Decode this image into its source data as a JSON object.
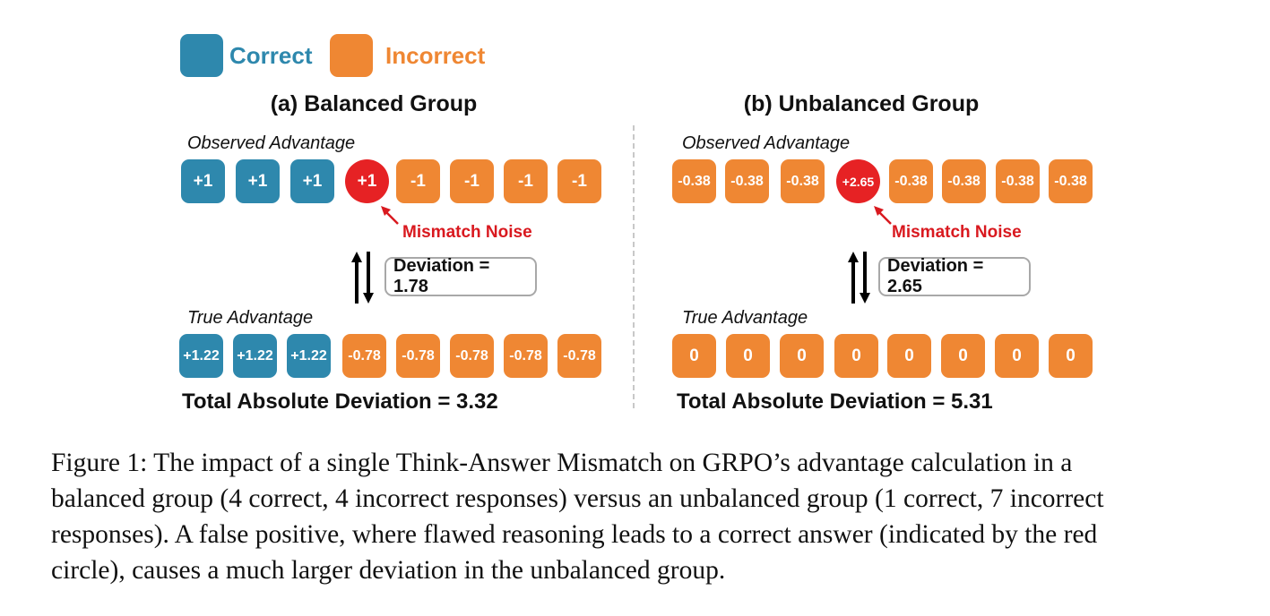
{
  "legend": {
    "correct": {
      "label": "Correct",
      "color": "#2e88ad"
    },
    "incorrect": {
      "label": "Incorrect",
      "color": "#ef8733"
    }
  },
  "colors": {
    "noise": "#e62224",
    "mismatch_text": "#d9191f"
  },
  "panels": [
    {
      "title": "(a) Balanced Group",
      "observed_label": "Observed Advantage",
      "observed": [
        {
          "value": "+1",
          "kind": "correct"
        },
        {
          "value": "+1",
          "kind": "correct"
        },
        {
          "value": "+1",
          "kind": "correct"
        },
        {
          "value": "+1",
          "kind": "noise"
        },
        {
          "value": "-1",
          "kind": "incorrect"
        },
        {
          "value": "-1",
          "kind": "incorrect"
        },
        {
          "value": "-1",
          "kind": "incorrect"
        },
        {
          "value": "-1",
          "kind": "incorrect"
        }
      ],
      "mismatch_label": "Mismatch Noise",
      "deviation_label": "Deviation = 1.78",
      "true_label": "True Advantage",
      "true": [
        {
          "value": "+1.22",
          "kind": "correct"
        },
        {
          "value": "+1.22",
          "kind": "correct"
        },
        {
          "value": "+1.22",
          "kind": "correct"
        },
        {
          "value": "-0.78",
          "kind": "incorrect"
        },
        {
          "value": "-0.78",
          "kind": "incorrect"
        },
        {
          "value": "-0.78",
          "kind": "incorrect"
        },
        {
          "value": "-0.78",
          "kind": "incorrect"
        },
        {
          "value": "-0.78",
          "kind": "incorrect"
        }
      ],
      "total_label": "Total Absolute Deviation = 3.32"
    },
    {
      "title": "(b) Unbalanced Group",
      "observed_label": "Observed Advantage",
      "observed": [
        {
          "value": "-0.38",
          "kind": "incorrect"
        },
        {
          "value": "-0.38",
          "kind": "incorrect"
        },
        {
          "value": "-0.38",
          "kind": "incorrect"
        },
        {
          "value": "+2.65",
          "kind": "noise"
        },
        {
          "value": "-0.38",
          "kind": "incorrect"
        },
        {
          "value": "-0.38",
          "kind": "incorrect"
        },
        {
          "value": "-0.38",
          "kind": "incorrect"
        },
        {
          "value": "-0.38",
          "kind": "incorrect"
        }
      ],
      "mismatch_label": "Mismatch Noise",
      "deviation_label": "Deviation = 2.65",
      "true_label": "True Advantage",
      "true": [
        {
          "value": "0",
          "kind": "incorrect"
        },
        {
          "value": "0",
          "kind": "incorrect"
        },
        {
          "value": "0",
          "kind": "incorrect"
        },
        {
          "value": "0",
          "kind": "incorrect"
        },
        {
          "value": "0",
          "kind": "incorrect"
        },
        {
          "value": "0",
          "kind": "incorrect"
        },
        {
          "value": "0",
          "kind": "incorrect"
        },
        {
          "value": "0",
          "kind": "incorrect"
        }
      ],
      "total_label": "Total Absolute Deviation = 5.31"
    }
  ],
  "caption": {
    "lines": [
      "Figure 1: The impact of a single Think-Answer Mismatch on GRPO’s advantage calculation in a",
      "balanced group (4 correct, 4 incorrect responses) versus an unbalanced group (1 correct, 7 incorrect",
      "responses). A false positive, where flawed reasoning leads to a correct answer (indicated by the red",
      "circle), causes a much larger deviation in the unbalanced group."
    ]
  }
}
